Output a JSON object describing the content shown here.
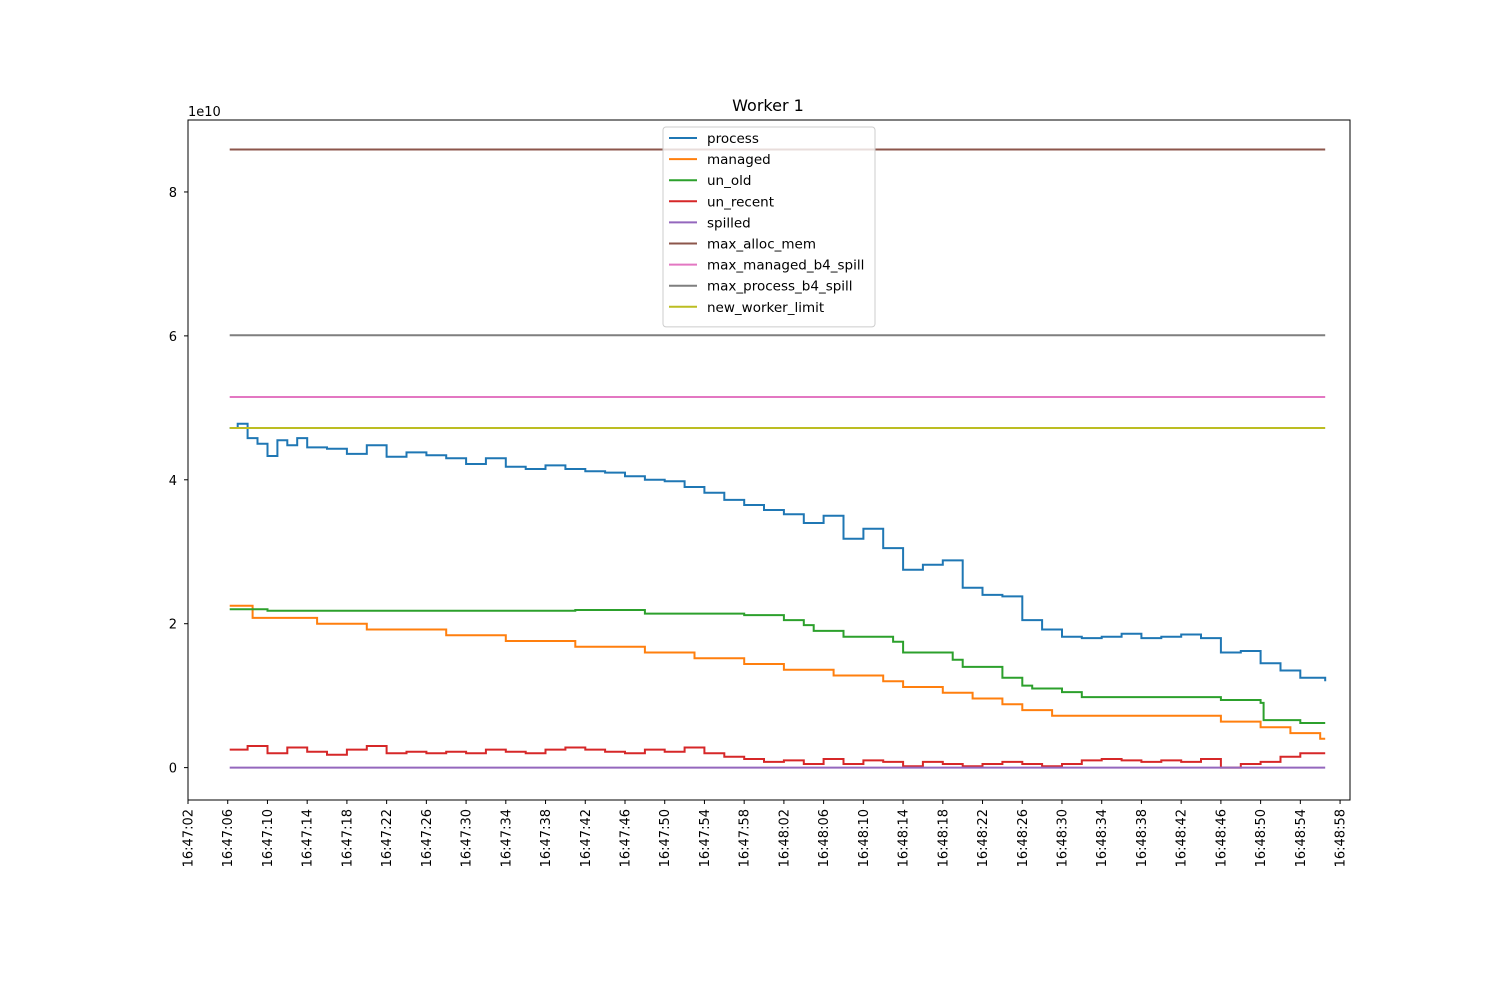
{
  "chart_data": {
    "type": "line",
    "step": true,
    "title": "Worker 1",
    "xlabel": "",
    "ylabel": "",
    "y_offset_label": "1e10",
    "y_unit_scale": 10000000000,
    "x_time_range": [
      "16:47:02",
      "16:48:59"
    ],
    "ylim": [
      -0.45,
      9.0
    ],
    "yticks": [
      0,
      2,
      4,
      6,
      8
    ],
    "xticks": [
      "16:47:02",
      "16:47:06",
      "16:47:10",
      "16:47:14",
      "16:47:18",
      "16:47:22",
      "16:47:26",
      "16:47:30",
      "16:47:34",
      "16:47:38",
      "16:47:42",
      "16:47:46",
      "16:47:50",
      "16:47:54",
      "16:47:58",
      "16:48:02",
      "16:48:06",
      "16:48:10",
      "16:48:14",
      "16:48:18",
      "16:48:22",
      "16:48:26",
      "16:48:30",
      "16:48:34",
      "16:48:38",
      "16:48:42",
      "16:48:46",
      "16:48:50",
      "16:48:54",
      "16:48:58"
    ],
    "grid": false,
    "legend_position": "upper center",
    "series": [
      {
        "name": "process",
        "color": "#1f77b4",
        "points": [
          [
            "16:47:06.2",
            4.72
          ],
          [
            "16:47:07",
            4.78
          ],
          [
            "16:47:08",
            4.58
          ],
          [
            "16:47:09",
            4.5
          ],
          [
            "16:47:10",
            4.33
          ],
          [
            "16:47:11",
            4.55
          ],
          [
            "16:47:12",
            4.48
          ],
          [
            "16:47:13",
            4.58
          ],
          [
            "16:47:14",
            4.45
          ],
          [
            "16:47:16",
            4.43
          ],
          [
            "16:47:18",
            4.36
          ],
          [
            "16:47:20",
            4.48
          ],
          [
            "16:47:22",
            4.32
          ],
          [
            "16:47:24",
            4.38
          ],
          [
            "16:47:26",
            4.34
          ],
          [
            "16:47:28",
            4.3
          ],
          [
            "16:47:30",
            4.22
          ],
          [
            "16:47:32",
            4.3
          ],
          [
            "16:47:34",
            4.18
          ],
          [
            "16:47:36",
            4.15
          ],
          [
            "16:47:38",
            4.2
          ],
          [
            "16:47:40",
            4.15
          ],
          [
            "16:47:42",
            4.12
          ],
          [
            "16:47:44",
            4.1
          ],
          [
            "16:47:46",
            4.05
          ],
          [
            "16:47:48",
            4.0
          ],
          [
            "16:47:50",
            3.98
          ],
          [
            "16:47:52",
            3.9
          ],
          [
            "16:47:54",
            3.82
          ],
          [
            "16:47:56",
            3.72
          ],
          [
            "16:47:58",
            3.65
          ],
          [
            "16:48:00",
            3.58
          ],
          [
            "16:48:02",
            3.52
          ],
          [
            "16:48:04",
            3.4
          ],
          [
            "16:48:06",
            3.5
          ],
          [
            "16:48:08",
            3.18
          ],
          [
            "16:48:10",
            3.32
          ],
          [
            "16:48:12",
            3.05
          ],
          [
            "16:48:14",
            2.75
          ],
          [
            "16:48:16",
            2.82
          ],
          [
            "16:48:18",
            2.88
          ],
          [
            "16:48:20",
            2.5
          ],
          [
            "16:48:22",
            2.4
          ],
          [
            "16:48:24",
            2.38
          ],
          [
            "16:48:26",
            2.05
          ],
          [
            "16:48:28",
            1.92
          ],
          [
            "16:48:30",
            1.82
          ],
          [
            "16:48:32",
            1.8
          ],
          [
            "16:48:34",
            1.82
          ],
          [
            "16:48:36",
            1.86
          ],
          [
            "16:48:38",
            1.8
          ],
          [
            "16:48:40",
            1.82
          ],
          [
            "16:48:42",
            1.85
          ],
          [
            "16:48:44",
            1.8
          ],
          [
            "16:48:46",
            1.6
          ],
          [
            "16:48:48",
            1.62
          ],
          [
            "16:48:50",
            1.45
          ],
          [
            "16:48:52",
            1.35
          ],
          [
            "16:48:54",
            1.25
          ],
          [
            "16:48:56.5",
            1.2
          ]
        ]
      },
      {
        "name": "managed",
        "color": "#ff7f0e",
        "points": [
          [
            "16:47:06.2",
            2.25
          ],
          [
            "16:47:08.5",
            2.08
          ],
          [
            "16:47:15",
            2.0
          ],
          [
            "16:47:20",
            1.92
          ],
          [
            "16:47:28",
            1.84
          ],
          [
            "16:47:34",
            1.76
          ],
          [
            "16:47:41",
            1.68
          ],
          [
            "16:47:48",
            1.6
          ],
          [
            "16:47:53",
            1.52
          ],
          [
            "16:47:58",
            1.44
          ],
          [
            "16:48:02",
            1.36
          ],
          [
            "16:48:07",
            1.28
          ],
          [
            "16:48:12",
            1.2
          ],
          [
            "16:48:14",
            1.12
          ],
          [
            "16:48:18",
            1.04
          ],
          [
            "16:48:21",
            0.96
          ],
          [
            "16:48:24",
            0.88
          ],
          [
            "16:48:26",
            0.8
          ],
          [
            "16:48:29",
            0.72
          ],
          [
            "16:48:46",
            0.64
          ],
          [
            "16:48:50",
            0.56
          ],
          [
            "16:48:53",
            0.48
          ],
          [
            "16:48:56",
            0.4
          ],
          [
            "16:48:56.5",
            0.4
          ]
        ]
      },
      {
        "name": "un_old",
        "color": "#2ca02c",
        "points": [
          [
            "16:47:06.2",
            2.2
          ],
          [
            "16:47:10",
            2.18
          ],
          [
            "16:47:41",
            2.19
          ],
          [
            "16:47:48",
            2.14
          ],
          [
            "16:47:58",
            2.12
          ],
          [
            "16:48:02",
            2.05
          ],
          [
            "16:48:04",
            1.98
          ],
          [
            "16:48:05",
            1.9
          ],
          [
            "16:48:08",
            1.82
          ],
          [
            "16:48:13",
            1.75
          ],
          [
            "16:48:14",
            1.6
          ],
          [
            "16:48:19",
            1.5
          ],
          [
            "16:48:20",
            1.4
          ],
          [
            "16:48:24",
            1.25
          ],
          [
            "16:48:26",
            1.14
          ],
          [
            "16:48:27",
            1.1
          ],
          [
            "16:48:30",
            1.05
          ],
          [
            "16:48:32",
            0.98
          ],
          [
            "16:48:46",
            0.94
          ],
          [
            "16:48:50",
            0.9
          ],
          [
            "16:48:50.3",
            0.66
          ],
          [
            "16:48:54",
            0.62
          ],
          [
            "16:48:56.5",
            0.62
          ]
        ]
      },
      {
        "name": "un_recent",
        "color": "#d62728",
        "points": [
          [
            "16:47:06.2",
            0.25
          ],
          [
            "16:47:08",
            0.3
          ],
          [
            "16:47:10",
            0.2
          ],
          [
            "16:47:12",
            0.28
          ],
          [
            "16:47:14",
            0.22
          ],
          [
            "16:47:16",
            0.18
          ],
          [
            "16:47:18",
            0.25
          ],
          [
            "16:47:20",
            0.3
          ],
          [
            "16:47:22",
            0.2
          ],
          [
            "16:47:24",
            0.22
          ],
          [
            "16:47:26",
            0.2
          ],
          [
            "16:47:28",
            0.22
          ],
          [
            "16:47:30",
            0.2
          ],
          [
            "16:47:32",
            0.25
          ],
          [
            "16:47:34",
            0.22
          ],
          [
            "16:47:36",
            0.2
          ],
          [
            "16:47:38",
            0.25
          ],
          [
            "16:47:40",
            0.28
          ],
          [
            "16:47:42",
            0.25
          ],
          [
            "16:47:44",
            0.22
          ],
          [
            "16:47:46",
            0.2
          ],
          [
            "16:47:48",
            0.25
          ],
          [
            "16:47:50",
            0.22
          ],
          [
            "16:47:52",
            0.28
          ],
          [
            "16:47:54",
            0.2
          ],
          [
            "16:47:56",
            0.15
          ],
          [
            "16:47:58",
            0.12
          ],
          [
            "16:48:00",
            0.08
          ],
          [
            "16:48:02",
            0.1
          ],
          [
            "16:48:04",
            0.05
          ],
          [
            "16:48:06",
            0.12
          ],
          [
            "16:48:08",
            0.05
          ],
          [
            "16:48:10",
            0.1
          ],
          [
            "16:48:12",
            0.08
          ],
          [
            "16:48:14",
            0.02
          ],
          [
            "16:48:16",
            0.08
          ],
          [
            "16:48:18",
            0.05
          ],
          [
            "16:48:20",
            0.02
          ],
          [
            "16:48:22",
            0.05
          ],
          [
            "16:48:24",
            0.08
          ],
          [
            "16:48:26",
            0.05
          ],
          [
            "16:48:28",
            0.02
          ],
          [
            "16:48:30",
            0.05
          ],
          [
            "16:48:32",
            0.1
          ],
          [
            "16:48:34",
            0.12
          ],
          [
            "16:48:36",
            0.1
          ],
          [
            "16:48:38",
            0.08
          ],
          [
            "16:48:40",
            0.1
          ],
          [
            "16:48:42",
            0.08
          ],
          [
            "16:48:44",
            0.12
          ],
          [
            "16:48:46",
            0.0
          ],
          [
            "16:48:48",
            0.05
          ],
          [
            "16:48:50",
            0.08
          ],
          [
            "16:48:52",
            0.15
          ],
          [
            "16:48:54",
            0.2
          ],
          [
            "16:48:56.5",
            0.2
          ]
        ]
      },
      {
        "name": "spilled",
        "color": "#9467bd",
        "points": [
          [
            "16:47:06.2",
            0.0
          ],
          [
            "16:48:56.5",
            0.0
          ]
        ]
      },
      {
        "name": "max_alloc_mem",
        "color": "#8c564b",
        "points": [
          [
            "16:47:06.2",
            8.59
          ],
          [
            "16:48:56.5",
            8.59
          ]
        ]
      },
      {
        "name": "max_managed_b4_spill",
        "color": "#e377c2",
        "points": [
          [
            "16:47:06.2",
            5.15
          ],
          [
            "16:48:56.5",
            5.15
          ]
        ]
      },
      {
        "name": "max_process_b4_spill",
        "color": "#7f7f7f",
        "points": [
          [
            "16:47:06.2",
            6.01
          ],
          [
            "16:48:56.5",
            6.01
          ]
        ]
      },
      {
        "name": "new_worker_limit",
        "color": "#bcbd22",
        "points": [
          [
            "16:47:06.2",
            4.72
          ],
          [
            "16:48:56.5",
            4.72
          ]
        ]
      }
    ]
  }
}
